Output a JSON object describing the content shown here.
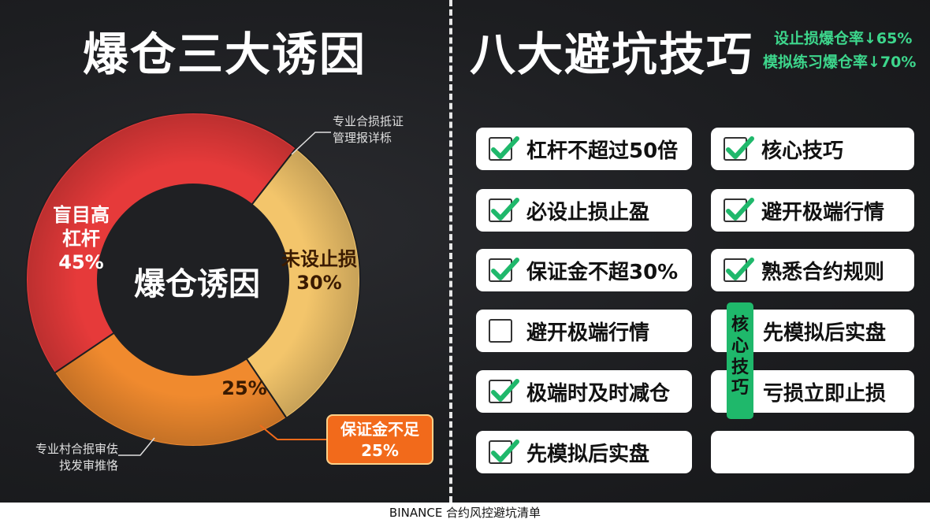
{
  "left_title": "爆仓三大诱因",
  "right_title": "八大避坑技巧",
  "stats": [
    "设止损爆仓率↓65%",
    "模拟练习爆仓率↓70%"
  ],
  "chart_data": {
    "type": "pie",
    "title": "爆仓三大诱因",
    "center_label": "爆仓诱因",
    "slices": [
      {
        "name": "盲目高\n杠杆",
        "value": 45,
        "label": "45%",
        "color": "#e63a3a"
      },
      {
        "name": "未设止损",
        "value": 30,
        "label": "30%",
        "color": "#f3c56b"
      },
      {
        "name": "保证金不足",
        "value": 25,
        "label": "25%",
        "color": "#f08a2e"
      }
    ]
  },
  "labels": {
    "blind_leverage": "盲目高\n杠杆\n45%",
    "no_stop_loss": "未设止损\n30%",
    "margin_pct": "25%",
    "margin_box": "保证金不足\n25%"
  },
  "notes": {
    "top": "专业合损抵证\n管理报详栎",
    "bottom": "专业村合抿审佉\n找发审推恪"
  },
  "tips": {
    "col1": [
      {
        "text": "杠杆不超过50倍",
        "checked": true
      },
      {
        "text": "必设止损止盈",
        "checked": true
      },
      {
        "text": "保证金不超30%",
        "checked": true
      },
      {
        "text": "避开极端行情",
        "checked": false
      },
      {
        "text": "极端时及时减仓",
        "checked": true
      },
      {
        "text": "先模拟后实盘",
        "checked": true
      }
    ],
    "col2": [
      {
        "text": "核心技巧",
        "checked": true
      },
      {
        "text": "避开极端行情",
        "checked": true
      },
      {
        "text": "熟悉合约规则",
        "checked": true
      },
      {
        "text": "先模拟后实盘",
        "checked": null
      },
      {
        "text": "亏损立即止损",
        "checked": null
      },
      {
        "text": "",
        "checked": null
      }
    ]
  },
  "core_tag": "核\n心\n技\n巧",
  "footer": "BINANCE 合约风控避坑清单",
  "colors": {
    "accent_green": "#3dd68c",
    "check_green": "#1fb86b",
    "callout_orange": "#f26a1b"
  }
}
